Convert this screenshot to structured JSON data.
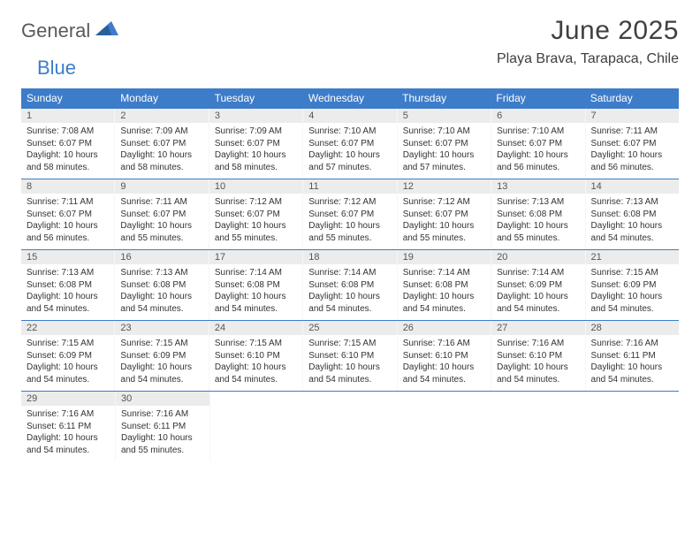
{
  "logo": {
    "text1": "General",
    "text2": "Blue"
  },
  "title": "June 2025",
  "location": "Playa Brava, Tarapaca, Chile",
  "weekdays": [
    "Sunday",
    "Monday",
    "Tuesday",
    "Wednesday",
    "Thursday",
    "Friday",
    "Saturday"
  ],
  "colors": {
    "header_bg": "#3d7cc9",
    "header_text": "#ffffff",
    "daynum_bg": "#ececec",
    "border": "#3d7cc9",
    "text": "#333333"
  },
  "weeks": [
    [
      {
        "n": "1",
        "sunrise": "Sunrise: 7:08 AM",
        "sunset": "Sunset: 6:07 PM",
        "day1": "Daylight: 10 hours",
        "day2": "and 58 minutes."
      },
      {
        "n": "2",
        "sunrise": "Sunrise: 7:09 AM",
        "sunset": "Sunset: 6:07 PM",
        "day1": "Daylight: 10 hours",
        "day2": "and 58 minutes."
      },
      {
        "n": "3",
        "sunrise": "Sunrise: 7:09 AM",
        "sunset": "Sunset: 6:07 PM",
        "day1": "Daylight: 10 hours",
        "day2": "and 58 minutes."
      },
      {
        "n": "4",
        "sunrise": "Sunrise: 7:10 AM",
        "sunset": "Sunset: 6:07 PM",
        "day1": "Daylight: 10 hours",
        "day2": "and 57 minutes."
      },
      {
        "n": "5",
        "sunrise": "Sunrise: 7:10 AM",
        "sunset": "Sunset: 6:07 PM",
        "day1": "Daylight: 10 hours",
        "day2": "and 57 minutes."
      },
      {
        "n": "6",
        "sunrise": "Sunrise: 7:10 AM",
        "sunset": "Sunset: 6:07 PM",
        "day1": "Daylight: 10 hours",
        "day2": "and 56 minutes."
      },
      {
        "n": "7",
        "sunrise": "Sunrise: 7:11 AM",
        "sunset": "Sunset: 6:07 PM",
        "day1": "Daylight: 10 hours",
        "day2": "and 56 minutes."
      }
    ],
    [
      {
        "n": "8",
        "sunrise": "Sunrise: 7:11 AM",
        "sunset": "Sunset: 6:07 PM",
        "day1": "Daylight: 10 hours",
        "day2": "and 56 minutes."
      },
      {
        "n": "9",
        "sunrise": "Sunrise: 7:11 AM",
        "sunset": "Sunset: 6:07 PM",
        "day1": "Daylight: 10 hours",
        "day2": "and 55 minutes."
      },
      {
        "n": "10",
        "sunrise": "Sunrise: 7:12 AM",
        "sunset": "Sunset: 6:07 PM",
        "day1": "Daylight: 10 hours",
        "day2": "and 55 minutes."
      },
      {
        "n": "11",
        "sunrise": "Sunrise: 7:12 AM",
        "sunset": "Sunset: 6:07 PM",
        "day1": "Daylight: 10 hours",
        "day2": "and 55 minutes."
      },
      {
        "n": "12",
        "sunrise": "Sunrise: 7:12 AM",
        "sunset": "Sunset: 6:07 PM",
        "day1": "Daylight: 10 hours",
        "day2": "and 55 minutes."
      },
      {
        "n": "13",
        "sunrise": "Sunrise: 7:13 AM",
        "sunset": "Sunset: 6:08 PM",
        "day1": "Daylight: 10 hours",
        "day2": "and 55 minutes."
      },
      {
        "n": "14",
        "sunrise": "Sunrise: 7:13 AM",
        "sunset": "Sunset: 6:08 PM",
        "day1": "Daylight: 10 hours",
        "day2": "and 54 minutes."
      }
    ],
    [
      {
        "n": "15",
        "sunrise": "Sunrise: 7:13 AM",
        "sunset": "Sunset: 6:08 PM",
        "day1": "Daylight: 10 hours",
        "day2": "and 54 minutes."
      },
      {
        "n": "16",
        "sunrise": "Sunrise: 7:13 AM",
        "sunset": "Sunset: 6:08 PM",
        "day1": "Daylight: 10 hours",
        "day2": "and 54 minutes."
      },
      {
        "n": "17",
        "sunrise": "Sunrise: 7:14 AM",
        "sunset": "Sunset: 6:08 PM",
        "day1": "Daylight: 10 hours",
        "day2": "and 54 minutes."
      },
      {
        "n": "18",
        "sunrise": "Sunrise: 7:14 AM",
        "sunset": "Sunset: 6:08 PM",
        "day1": "Daylight: 10 hours",
        "day2": "and 54 minutes."
      },
      {
        "n": "19",
        "sunrise": "Sunrise: 7:14 AM",
        "sunset": "Sunset: 6:08 PM",
        "day1": "Daylight: 10 hours",
        "day2": "and 54 minutes."
      },
      {
        "n": "20",
        "sunrise": "Sunrise: 7:14 AM",
        "sunset": "Sunset: 6:09 PM",
        "day1": "Daylight: 10 hours",
        "day2": "and 54 minutes."
      },
      {
        "n": "21",
        "sunrise": "Sunrise: 7:15 AM",
        "sunset": "Sunset: 6:09 PM",
        "day1": "Daylight: 10 hours",
        "day2": "and 54 minutes."
      }
    ],
    [
      {
        "n": "22",
        "sunrise": "Sunrise: 7:15 AM",
        "sunset": "Sunset: 6:09 PM",
        "day1": "Daylight: 10 hours",
        "day2": "and 54 minutes."
      },
      {
        "n": "23",
        "sunrise": "Sunrise: 7:15 AM",
        "sunset": "Sunset: 6:09 PM",
        "day1": "Daylight: 10 hours",
        "day2": "and 54 minutes."
      },
      {
        "n": "24",
        "sunrise": "Sunrise: 7:15 AM",
        "sunset": "Sunset: 6:10 PM",
        "day1": "Daylight: 10 hours",
        "day2": "and 54 minutes."
      },
      {
        "n": "25",
        "sunrise": "Sunrise: 7:15 AM",
        "sunset": "Sunset: 6:10 PM",
        "day1": "Daylight: 10 hours",
        "day2": "and 54 minutes."
      },
      {
        "n": "26",
        "sunrise": "Sunrise: 7:16 AM",
        "sunset": "Sunset: 6:10 PM",
        "day1": "Daylight: 10 hours",
        "day2": "and 54 minutes."
      },
      {
        "n": "27",
        "sunrise": "Sunrise: 7:16 AM",
        "sunset": "Sunset: 6:10 PM",
        "day1": "Daylight: 10 hours",
        "day2": "and 54 minutes."
      },
      {
        "n": "28",
        "sunrise": "Sunrise: 7:16 AM",
        "sunset": "Sunset: 6:11 PM",
        "day1": "Daylight: 10 hours",
        "day2": "and 54 minutes."
      }
    ],
    [
      {
        "n": "29",
        "sunrise": "Sunrise: 7:16 AM",
        "sunset": "Sunset: 6:11 PM",
        "day1": "Daylight: 10 hours",
        "day2": "and 54 minutes."
      },
      {
        "n": "30",
        "sunrise": "Sunrise: 7:16 AM",
        "sunset": "Sunset: 6:11 PM",
        "day1": "Daylight: 10 hours",
        "day2": "and 55 minutes."
      },
      null,
      null,
      null,
      null,
      null
    ]
  ]
}
